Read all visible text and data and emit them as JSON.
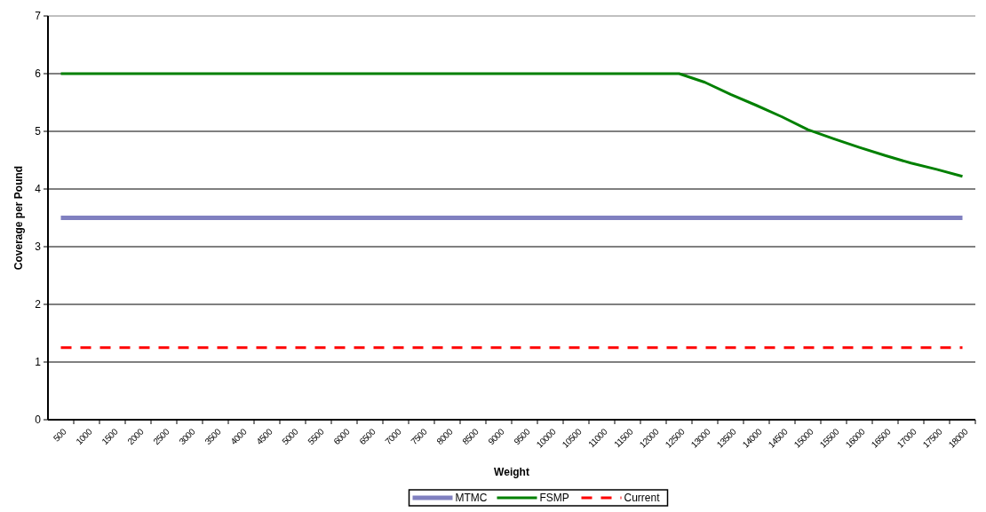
{
  "chart_data": {
    "type": "line",
    "xlabel": "Weight",
    "ylabel": "Coverage per Pound",
    "categories": [
      "500",
      "1000",
      "1500",
      "2000",
      "2500",
      "3000",
      "3500",
      "4000",
      "4500",
      "5000",
      "5500",
      "6000",
      "6500",
      "7000",
      "7500",
      "8000",
      "8500",
      "9000",
      "9500",
      "10000",
      "10500",
      "11000",
      "11500",
      "12000",
      "12500",
      "13000",
      "13500",
      "14000",
      "14500",
      "15000",
      "15500",
      "16000",
      "16500",
      "17000",
      "17500",
      "18000"
    ],
    "series": [
      {
        "name": "MTMC",
        "color": "#8080c0",
        "line_style": "solid",
        "values": [
          3.5,
          3.5,
          3.5,
          3.5,
          3.5,
          3.5,
          3.5,
          3.5,
          3.5,
          3.5,
          3.5,
          3.5,
          3.5,
          3.5,
          3.5,
          3.5,
          3.5,
          3.5,
          3.5,
          3.5,
          3.5,
          3.5,
          3.5,
          3.5,
          3.5,
          3.5,
          3.5,
          3.5,
          3.5,
          3.5,
          3.5,
          3.5,
          3.5,
          3.5,
          3.5,
          3.5
        ]
      },
      {
        "name": "FSMP",
        "color": "#008000",
        "line_style": "solid",
        "values": [
          6,
          6,
          6,
          6,
          6,
          6,
          6,
          6,
          6,
          6,
          6,
          6,
          6,
          6,
          6,
          6,
          6,
          6,
          6,
          6,
          6,
          6,
          6,
          6,
          6,
          5.85,
          5.64,
          5.45,
          5.25,
          5.03,
          4.87,
          4.72,
          4.58,
          4.45,
          4.34,
          4.22
        ]
      },
      {
        "name": "Current",
        "color": "#ff0000",
        "line_style": "dashed",
        "values": [
          1.25,
          1.25,
          1.25,
          1.25,
          1.25,
          1.25,
          1.25,
          1.25,
          1.25,
          1.25,
          1.25,
          1.25,
          1.25,
          1.25,
          1.25,
          1.25,
          1.25,
          1.25,
          1.25,
          1.25,
          1.25,
          1.25,
          1.25,
          1.25,
          1.25,
          1.25,
          1.25,
          1.25,
          1.25,
          1.25,
          1.25,
          1.25,
          1.25,
          1.25,
          1.25,
          1.25
        ]
      }
    ],
    "ylim": [
      0,
      7
    ],
    "yticks": [
      0,
      1,
      2,
      3,
      4,
      5,
      6,
      7
    ],
    "grid": "y",
    "legend": "bottom",
    "marker": "none"
  }
}
